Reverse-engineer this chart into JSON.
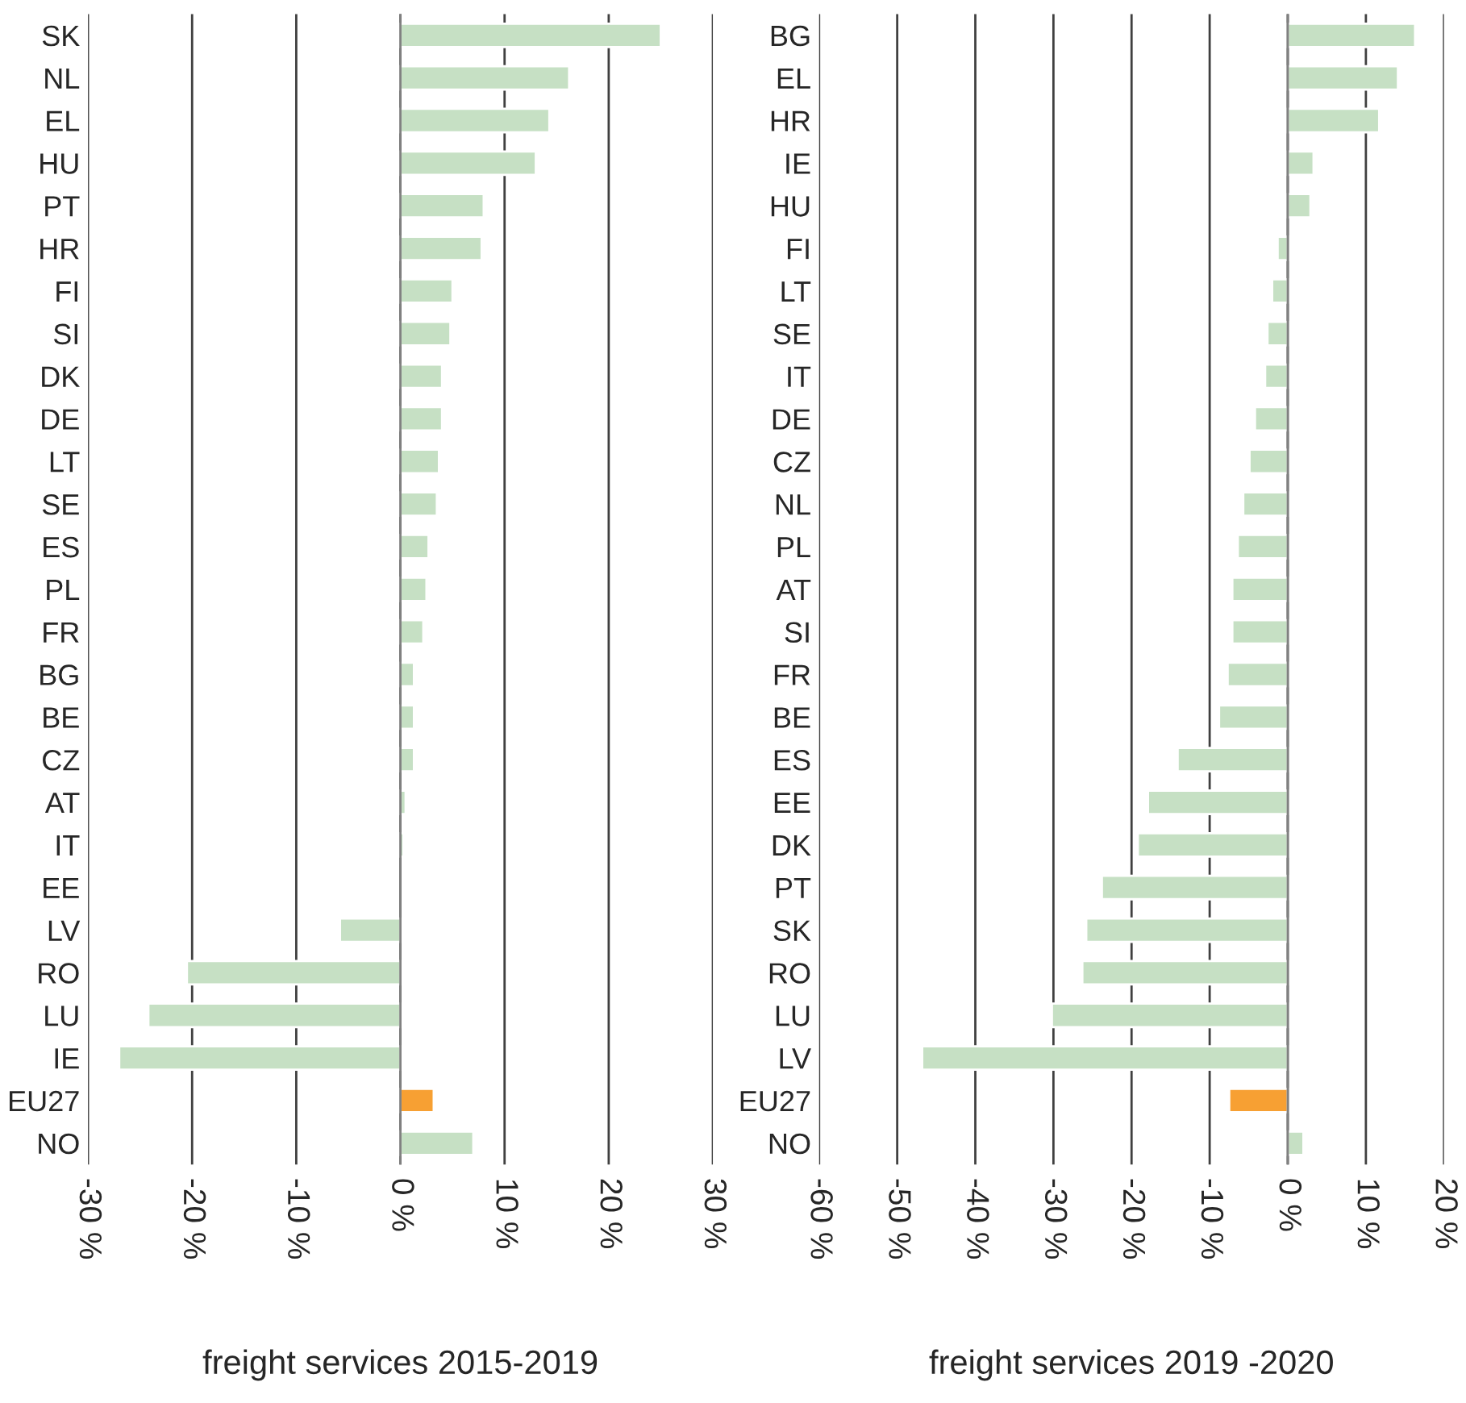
{
  "chart_data": [
    {
      "type": "bar",
      "orientation": "horizontal",
      "xlabel": "freight services 2015-2019",
      "categories": [
        "SK",
        "NL",
        "EL",
        "HU",
        "PT",
        "HR",
        "FI",
        "SI",
        "DK",
        "DE",
        "LT",
        "SE",
        "ES",
        "PL",
        "FR",
        "BG",
        "BE",
        "CZ",
        "AT",
        "IT",
        "EE",
        "LV",
        "RO",
        "LU",
        "IE",
        "EU27",
        "NO"
      ],
      "values": [
        25,
        16.2,
        14.3,
        13,
        8,
        7.8,
        5,
        4.8,
        4,
        4,
        3.7,
        3.5,
        2.7,
        2.5,
        2.2,
        1.3,
        1.3,
        1.3,
        0.5,
        0.3,
        null,
        -5.8,
        -20.5,
        -24.2,
        -27,
        3.2,
        7
      ],
      "colors": [
        "#c6e0c4",
        "#c6e0c4",
        "#c6e0c4",
        "#c6e0c4",
        "#c6e0c4",
        "#c6e0c4",
        "#c6e0c4",
        "#c6e0c4",
        "#c6e0c4",
        "#c6e0c4",
        "#c6e0c4",
        "#c6e0c4",
        "#c6e0c4",
        "#c6e0c4",
        "#c6e0c4",
        "#c6e0c4",
        "#c6e0c4",
        "#c6e0c4",
        "#c6e0c4",
        "#c6e0c4",
        "#c6e0c4",
        "#c6e0c4",
        "#c6e0c4",
        "#c6e0c4",
        "#c6e0c4",
        "#f7a033",
        "#c6e0c4"
      ],
      "xlim": [
        -30,
        30
      ],
      "xticks": [
        {
          "value": -30,
          "label": "-30 %"
        },
        {
          "value": -20,
          "label": "-20 %"
        },
        {
          "value": -10,
          "label": "-10 %"
        },
        {
          "value": 0,
          "label": "0 %"
        },
        {
          "value": 10,
          "label": "10 %"
        },
        {
          "value": 20,
          "label": "20 %"
        },
        {
          "value": 30,
          "label": "30 %"
        }
      ],
      "grid": "x"
    },
    {
      "type": "bar",
      "orientation": "horizontal",
      "xlabel": "freight services 2019 -2020",
      "categories": [
        "BG",
        "EL",
        "HR",
        "IE",
        "HU",
        "FI",
        "LT",
        "SE",
        "IT",
        "DE",
        "CZ",
        "NL",
        "PL",
        "AT",
        "SI",
        "FR",
        "BE",
        "ES",
        "EE",
        "DK",
        "PT",
        "SK",
        "RO",
        "LU",
        "LV",
        "EU27",
        "NO"
      ],
      "values": [
        16.3,
        14.1,
        11.7,
        3.3,
        2.9,
        -1.3,
        -2,
        -2.6,
        -2.9,
        -4.2,
        -4.9,
        -5.7,
        -6.4,
        -7.1,
        -7.1,
        -7.7,
        -8.8,
        -14.1,
        -17.9,
        -19.2,
        -23.8,
        -25.8,
        -26.3,
        -30.2,
        -46.8,
        -7.5,
        2
      ],
      "colors": [
        "#c6e0c4",
        "#c6e0c4",
        "#c6e0c4",
        "#c6e0c4",
        "#c6e0c4",
        "#c6e0c4",
        "#c6e0c4",
        "#c6e0c4",
        "#c6e0c4",
        "#c6e0c4",
        "#c6e0c4",
        "#c6e0c4",
        "#c6e0c4",
        "#c6e0c4",
        "#c6e0c4",
        "#c6e0c4",
        "#c6e0c4",
        "#c6e0c4",
        "#c6e0c4",
        "#c6e0c4",
        "#c6e0c4",
        "#c6e0c4",
        "#c6e0c4",
        "#c6e0c4",
        "#c6e0c4",
        "#f7a033",
        "#c6e0c4"
      ],
      "xlim": [
        -60,
        20
      ],
      "xticks": [
        {
          "value": -60,
          "label": "-60 %"
        },
        {
          "value": -50,
          "label": "-50 %"
        },
        {
          "value": -40,
          "label": "-40 %"
        },
        {
          "value": -30,
          "label": "-30 %"
        },
        {
          "value": -20,
          "label": "-20 %"
        },
        {
          "value": -10,
          "label": "-10 %"
        },
        {
          "value": 0,
          "label": "0 %"
        },
        {
          "value": 10,
          "label": "10 %"
        },
        {
          "value": 20,
          "label": "20 %"
        }
      ],
      "grid": "x"
    }
  ]
}
